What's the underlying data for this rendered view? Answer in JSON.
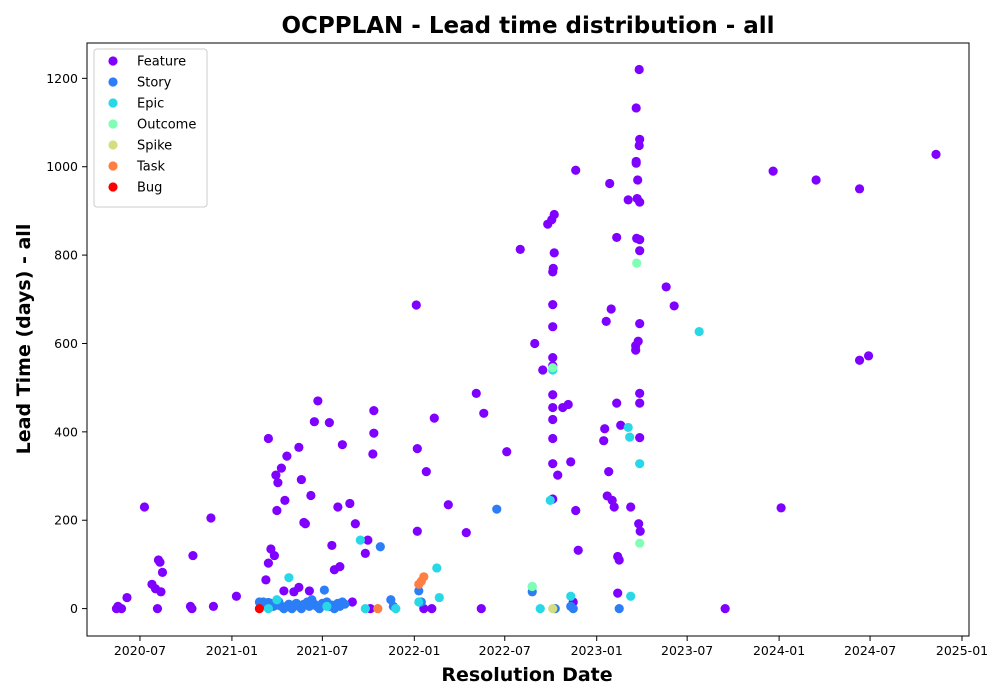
{
  "chart_data": {
    "type": "scatter",
    "title": "OCPPLAN - Lead time distribution - all",
    "xlabel": "Resolution Date",
    "ylabel": "Lead Time (days) - all",
    "xlim": [
      "2020-03-17",
      "2025-01-15"
    ],
    "ylim": [
      -62,
      1280
    ],
    "x_ticks": [
      "2020-07",
      "2021-01",
      "2021-07",
      "2022-01",
      "2022-07",
      "2023-01",
      "2023-07",
      "2024-01",
      "2024-07",
      "2025-01"
    ],
    "y_ticks": [
      0,
      200,
      400,
      600,
      800,
      1000,
      1200
    ],
    "grid": false,
    "legend_position": "top-left",
    "series": [
      {
        "name": "Feature",
        "color": "#8000ff",
        "points": [
          [
            "2020-05-15",
            0
          ],
          [
            "2020-05-18",
            5
          ],
          [
            "2020-05-25",
            0
          ],
          [
            "2020-06-05",
            25
          ],
          [
            "2020-07-10",
            230
          ],
          [
            "2020-07-25",
            55
          ],
          [
            "2020-08-01",
            45
          ],
          [
            "2020-08-05",
            0
          ],
          [
            "2020-08-07",
            110
          ],
          [
            "2020-08-10",
            105
          ],
          [
            "2020-08-12",
            38
          ],
          [
            "2020-08-15",
            82
          ],
          [
            "2020-10-10",
            5
          ],
          [
            "2020-10-13",
            0
          ],
          [
            "2020-10-15",
            120
          ],
          [
            "2020-11-20",
            205
          ],
          [
            "2020-11-25",
            5
          ],
          [
            "2021-01-10",
            28
          ],
          [
            "2021-03-10",
            65
          ],
          [
            "2021-03-15",
            103
          ],
          [
            "2021-03-15",
            385
          ],
          [
            "2021-03-20",
            135
          ],
          [
            "2021-03-27",
            120
          ],
          [
            "2021-03-30",
            302
          ],
          [
            "2021-04-01",
            222
          ],
          [
            "2021-04-03",
            285
          ],
          [
            "2021-04-10",
            318
          ],
          [
            "2021-04-15",
            40
          ],
          [
            "2021-04-17",
            245
          ],
          [
            "2021-04-21",
            345
          ],
          [
            "2021-05-05",
            38
          ],
          [
            "2021-05-15",
            48
          ],
          [
            "2021-05-15",
            365
          ],
          [
            "2021-05-20",
            292
          ],
          [
            "2021-05-25",
            195
          ],
          [
            "2021-05-28",
            192
          ],
          [
            "2021-06-05",
            40
          ],
          [
            "2021-06-08",
            256
          ],
          [
            "2021-06-15",
            423
          ],
          [
            "2021-06-22",
            470
          ],
          [
            "2021-07-15",
            421
          ],
          [
            "2021-07-20",
            143
          ],
          [
            "2021-07-25",
            88
          ],
          [
            "2021-08-01",
            230
          ],
          [
            "2021-08-05",
            95
          ],
          [
            "2021-08-10",
            371
          ],
          [
            "2021-08-25",
            238
          ],
          [
            "2021-08-30",
            15
          ],
          [
            "2021-09-05",
            192
          ],
          [
            "2021-09-25",
            125
          ],
          [
            "2021-09-30",
            155
          ],
          [
            "2021-10-05",
            0
          ],
          [
            "2021-10-10",
            350
          ],
          [
            "2021-10-12",
            397
          ],
          [
            "2021-10-12",
            448
          ],
          [
            "2022-01-05",
            687
          ],
          [
            "2022-01-07",
            362
          ],
          [
            "2022-01-07",
            175
          ],
          [
            "2022-01-20",
            0
          ],
          [
            "2022-01-25",
            310
          ],
          [
            "2022-02-05",
            0
          ],
          [
            "2022-02-10",
            431
          ],
          [
            "2022-03-10",
            235
          ],
          [
            "2022-04-15",
            172
          ],
          [
            "2022-05-05",
            487
          ],
          [
            "2022-05-15",
            0
          ],
          [
            "2022-05-20",
            442
          ],
          [
            "2022-07-05",
            355
          ],
          [
            "2022-08-01",
            813
          ],
          [
            "2022-08-30",
            600
          ],
          [
            "2022-09-15",
            540
          ],
          [
            "2022-09-25",
            870
          ],
          [
            "2022-10-03",
            880
          ],
          [
            "2022-10-05",
            248
          ],
          [
            "2022-10-05",
            328
          ],
          [
            "2022-10-05",
            385
          ],
          [
            "2022-10-05",
            428
          ],
          [
            "2022-10-05",
            455
          ],
          [
            "2022-10-05",
            484
          ],
          [
            "2022-10-05",
            550
          ],
          [
            "2022-10-05",
            568
          ],
          [
            "2022-10-05",
            638
          ],
          [
            "2022-10-05",
            688
          ],
          [
            "2022-10-05",
            762
          ],
          [
            "2022-10-06",
            770
          ],
          [
            "2022-10-08",
            805
          ],
          [
            "2022-10-08",
            892
          ],
          [
            "2022-10-15",
            302
          ],
          [
            "2022-10-25",
            455
          ],
          [
            "2022-11-05",
            462
          ],
          [
            "2022-11-10",
            332
          ],
          [
            "2022-11-15",
            15
          ],
          [
            "2022-11-20",
            992
          ],
          [
            "2022-11-20",
            222
          ],
          [
            "2022-11-25",
            132
          ],
          [
            "2023-01-15",
            380
          ],
          [
            "2023-01-17",
            407
          ],
          [
            "2023-01-20",
            650
          ],
          [
            "2023-01-22",
            255
          ],
          [
            "2023-01-25",
            310
          ],
          [
            "2023-01-27",
            962
          ],
          [
            "2023-01-30",
            678
          ],
          [
            "2023-02-01",
            245
          ],
          [
            "2023-02-05",
            230
          ],
          [
            "2023-02-10",
            840
          ],
          [
            "2023-02-10",
            465
          ],
          [
            "2023-02-12",
            35
          ],
          [
            "2023-02-12",
            118
          ],
          [
            "2023-02-15",
            110
          ],
          [
            "2023-02-18",
            415
          ],
          [
            "2023-03-05",
            925
          ],
          [
            "2023-03-10",
            230
          ],
          [
            "2023-03-20",
            585
          ],
          [
            "2023-03-20",
            595
          ],
          [
            "2023-03-21",
            1008
          ],
          [
            "2023-03-21",
            1012
          ],
          [
            "2023-03-21",
            1133
          ],
          [
            "2023-03-22",
            838
          ],
          [
            "2023-03-23",
            928
          ],
          [
            "2023-03-24",
            970
          ],
          [
            "2023-03-25",
            605
          ],
          [
            "2023-03-26",
            192
          ],
          [
            "2023-03-27",
            1220
          ],
          [
            "2023-03-27",
            1048
          ],
          [
            "2023-03-28",
            1062
          ],
          [
            "2023-03-28",
            920
          ],
          [
            "2023-03-28",
            810
          ],
          [
            "2023-03-28",
            835
          ],
          [
            "2023-03-28",
            645
          ],
          [
            "2023-03-28",
            465
          ],
          [
            "2023-03-28",
            487
          ],
          [
            "2023-03-28",
            387
          ],
          [
            "2023-03-29",
            175
          ],
          [
            "2023-05-20",
            728
          ],
          [
            "2023-06-05",
            685
          ],
          [
            "2023-09-15",
            0
          ],
          [
            "2023-12-20",
            990
          ],
          [
            "2024-01-05",
            228
          ],
          [
            "2024-03-15",
            970
          ],
          [
            "2024-06-10",
            950
          ],
          [
            "2024-06-10",
            562
          ],
          [
            "2024-06-28",
            572
          ],
          [
            "2024-11-10",
            1028
          ]
        ]
      },
      {
        "name": "Story",
        "color": "#2c7ef7",
        "points": [
          [
            "2021-02-25",
            15
          ],
          [
            "2021-03-05",
            15
          ],
          [
            "2021-03-10",
            10
          ],
          [
            "2021-03-15",
            14
          ],
          [
            "2021-03-20",
            12
          ],
          [
            "2021-03-25",
            5
          ],
          [
            "2021-04-01",
            8
          ],
          [
            "2021-04-05",
            15
          ],
          [
            "2021-04-10",
            5
          ],
          [
            "2021-04-15",
            0
          ],
          [
            "2021-04-20",
            5
          ],
          [
            "2021-04-25",
            10
          ],
          [
            "2021-05-01",
            0
          ],
          [
            "2021-05-05",
            8
          ],
          [
            "2021-05-10",
            12
          ],
          [
            "2021-05-15",
            5
          ],
          [
            "2021-05-20",
            0
          ],
          [
            "2021-05-25",
            10
          ],
          [
            "2021-06-01",
            15
          ],
          [
            "2021-06-05",
            5
          ],
          [
            "2021-06-10",
            20
          ],
          [
            "2021-06-15",
            10
          ],
          [
            "2021-06-20",
            5
          ],
          [
            "2021-06-25",
            0
          ],
          [
            "2021-07-01",
            12
          ],
          [
            "2021-07-05",
            42
          ],
          [
            "2021-07-10",
            15
          ],
          [
            "2021-07-15",
            5
          ],
          [
            "2021-07-20",
            8
          ],
          [
            "2021-07-25",
            0
          ],
          [
            "2021-08-01",
            12
          ],
          [
            "2021-08-05",
            5
          ],
          [
            "2021-08-10",
            15
          ],
          [
            "2021-08-15",
            10
          ],
          [
            "2021-10-25",
            140
          ],
          [
            "2021-11-15",
            20
          ],
          [
            "2021-11-20",
            5
          ],
          [
            "2022-01-10",
            40
          ],
          [
            "2022-01-15",
            15
          ],
          [
            "2022-06-15",
            225
          ],
          [
            "2022-08-25",
            38
          ],
          [
            "2022-10-10",
            0
          ],
          [
            "2022-11-10",
            5
          ],
          [
            "2022-11-15",
            0
          ],
          [
            "2023-02-15",
            0
          ]
        ]
      },
      {
        "name": "Epic",
        "color": "#28d8e6",
        "points": [
          [
            "2021-03-15",
            0
          ],
          [
            "2021-04-01",
            20
          ],
          [
            "2021-04-25",
            70
          ],
          [
            "2021-07-10",
            5
          ],
          [
            "2021-09-15",
            155
          ],
          [
            "2021-09-25",
            0
          ],
          [
            "2021-11-25",
            0
          ],
          [
            "2022-01-10",
            15
          ],
          [
            "2022-02-15",
            92
          ],
          [
            "2022-02-20",
            25
          ],
          [
            "2022-08-25",
            50
          ],
          [
            "2022-09-10",
            0
          ],
          [
            "2022-09-30",
            245
          ],
          [
            "2022-10-05",
            540
          ],
          [
            "2022-11-10",
            28
          ],
          [
            "2023-03-05",
            410
          ],
          [
            "2023-03-08",
            388
          ],
          [
            "2023-03-10",
            28
          ],
          [
            "2023-03-28",
            328
          ],
          [
            "2023-07-25",
            627
          ]
        ]
      },
      {
        "name": "Outcome",
        "color": "#80ffb4",
        "points": [
          [
            "2022-08-25",
            50
          ],
          [
            "2022-10-05",
            545
          ],
          [
            "2023-03-22",
            782
          ],
          [
            "2023-03-28",
            148
          ]
        ]
      },
      {
        "name": "Spike",
        "color": "#d4dd80",
        "points": [
          [
            "2022-10-05",
            0
          ]
        ]
      },
      {
        "name": "Task",
        "color": "#ff7e41",
        "points": [
          [
            "2021-10-20",
            0
          ],
          [
            "2022-01-10",
            55
          ],
          [
            "2022-01-15",
            62
          ],
          [
            "2022-01-20",
            72
          ]
        ]
      },
      {
        "name": "Bug",
        "color": "#ff0000",
        "points": [
          [
            "2021-02-25",
            0
          ]
        ]
      }
    ]
  }
}
